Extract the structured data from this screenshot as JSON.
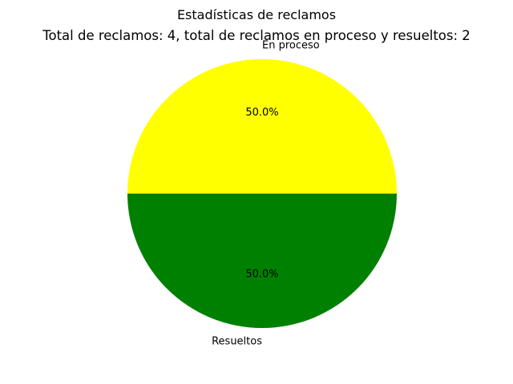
{
  "chart_data": {
    "type": "pie",
    "suptitle": "Estadísticas de reclamos",
    "title": "Total de reclamos: 4, total de reclamos en proceso y resueltos: 2",
    "slices": [
      {
        "label": "En proceso",
        "value": 1,
        "percent_label": "50.0%",
        "color": "#ffff00"
      },
      {
        "label": "Resueltos",
        "value": 1,
        "percent_label": "50.0%",
        "color": "#008000"
      }
    ],
    "start_angle_deg": 0,
    "direction": "counterclockwise",
    "legend": "none"
  }
}
